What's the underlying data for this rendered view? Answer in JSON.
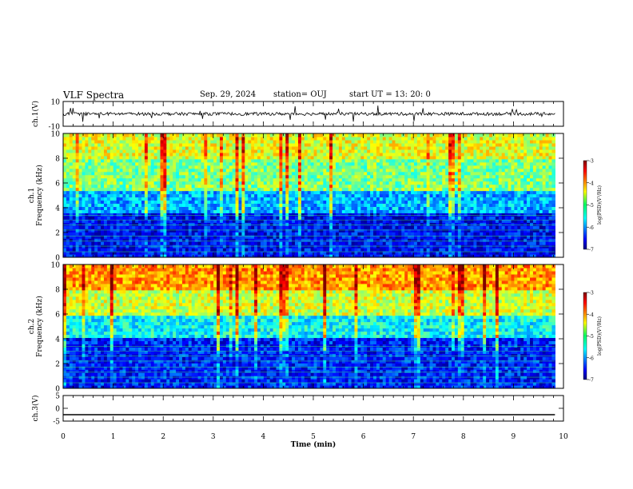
{
  "header": {
    "title": "VLF Spectra",
    "date": "Sep. 29, 2024",
    "station": "station= OUJ",
    "start": "start  UT  =   13: 20: 0"
  },
  "colorbar": {
    "label": "log(PSD)(V²/Hz)",
    "ticks": [
      "-3",
      "-4",
      "-5",
      "-6",
      "-7"
    ]
  },
  "chart_data": [
    {
      "type": "line",
      "panel": "ch1-waveform",
      "ylabel": "ch.1(V)",
      "ylim": [
        -10,
        10
      ],
      "yticks": [
        10,
        -10
      ],
      "x": [
        0,
        9.83
      ],
      "y_baseline": 0,
      "xlim": [
        0,
        10
      ]
    },
    {
      "type": "heatmap",
      "panel": "ch1-spectrogram",
      "ylabel": "ch.1\nFrequency (kHz)",
      "ylim": [
        0,
        10
      ],
      "yticks": [
        0,
        2,
        4,
        6,
        8,
        10
      ],
      "xlim": [
        0,
        10
      ],
      "data_end_min": 9.83,
      "colormap": "jet",
      "clim": [
        -7,
        -3
      ],
      "description_bands_khz": [
        [
          0,
          3.5,
          -6.5
        ],
        [
          3.5,
          5.5,
          -5.8
        ],
        [
          5.5,
          8,
          -5.0
        ],
        [
          8,
          10,
          -4.6
        ]
      ]
    },
    {
      "type": "heatmap",
      "panel": "ch2-spectrogram",
      "ylabel": "ch.2\nFrequency (kHz)",
      "ylim": [
        0,
        10
      ],
      "yticks": [
        0,
        2,
        4,
        6,
        8,
        10
      ],
      "xlim": [
        0,
        10
      ],
      "data_end_min": 9.83,
      "colormap": "jet",
      "clim": [
        -7,
        -3
      ],
      "description_bands_khz": [
        [
          0,
          4,
          -6.4
        ],
        [
          4,
          6,
          -5.5
        ],
        [
          6,
          8,
          -4.7
        ],
        [
          8,
          10,
          -4.1
        ]
      ]
    },
    {
      "type": "line",
      "panel": "ch3-waveform",
      "ylabel": "ch.3(V)",
      "ylim": [
        -5,
        5
      ],
      "yticks": [
        5,
        0,
        -5
      ],
      "x": [
        0,
        9.83
      ],
      "y": [
        -2.5,
        -2.5
      ],
      "xlim": [
        0,
        10
      ]
    }
  ],
  "xaxis": {
    "label": "Time  (min)",
    "ticks": [
      "0",
      "1",
      "2",
      "3",
      "4",
      "5",
      "6",
      "7",
      "8",
      "9",
      "10"
    ]
  },
  "colors": {
    "waveform": "#000000",
    "frame": "#000000"
  }
}
